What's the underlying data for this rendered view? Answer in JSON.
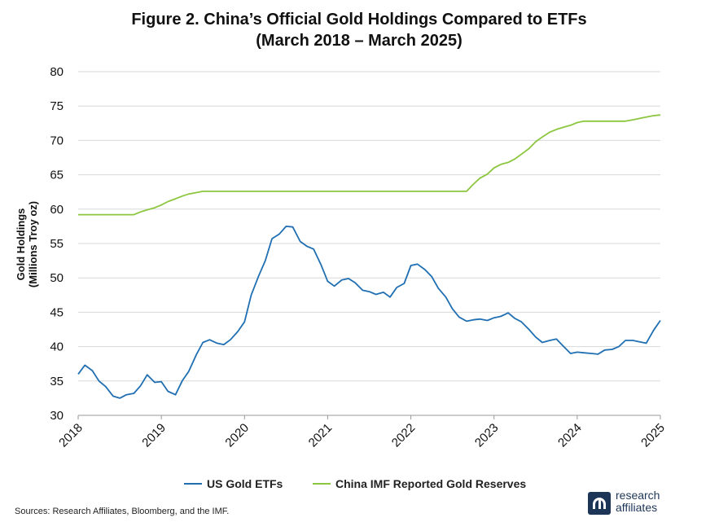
{
  "title_line1": "Figure 2. China’s Official Gold Holdings Compared to ETFs",
  "title_line2": "(March 2018 – March 2025)",
  "source": "Sources: Research Affiliates, Bloomberg, and the IMF.",
  "logo": {
    "line1": "research",
    "line2": "affiliates"
  },
  "colors": {
    "us_etf": "#1f6fb2",
    "china": "#8cc63f",
    "grid": "#d8d8d8"
  },
  "chart_data": {
    "type": "line",
    "ylabel_line1": "Gold Holdings",
    "ylabel_line2": "(Millions Troy oz)",
    "ylim": [
      30,
      80
    ],
    "yticks": [
      30,
      35,
      40,
      45,
      50,
      55,
      60,
      65,
      70,
      75,
      80
    ],
    "xlim": [
      2018.0,
      2025.0
    ],
    "xticks": [
      2018,
      2019,
      2020,
      2021,
      2022,
      2023,
      2024,
      2025
    ],
    "grid": true,
    "legend_position": "bottom",
    "series": [
      {
        "name": "US Gold ETFs",
        "color": "#1f6fb2",
        "points": [
          [
            2018.0,
            36.0
          ],
          [
            2018.08,
            37.3
          ],
          [
            2018.17,
            36.5
          ],
          [
            2018.25,
            35.0
          ],
          [
            2018.33,
            34.2
          ],
          [
            2018.42,
            32.8
          ],
          [
            2018.5,
            32.5
          ],
          [
            2018.58,
            33.0
          ],
          [
            2018.67,
            33.2
          ],
          [
            2018.75,
            34.3
          ],
          [
            2018.83,
            35.9
          ],
          [
            2018.92,
            34.8
          ],
          [
            2019.0,
            34.9
          ],
          [
            2019.08,
            33.5
          ],
          [
            2019.17,
            33.0
          ],
          [
            2019.25,
            35.0
          ],
          [
            2019.33,
            36.4
          ],
          [
            2019.42,
            38.8
          ],
          [
            2019.5,
            40.6
          ],
          [
            2019.58,
            41.0
          ],
          [
            2019.67,
            40.5
          ],
          [
            2019.75,
            40.3
          ],
          [
            2019.83,
            41.0
          ],
          [
            2019.92,
            42.2
          ],
          [
            2020.0,
            43.6
          ],
          [
            2020.08,
            47.5
          ],
          [
            2020.17,
            50.3
          ],
          [
            2020.25,
            52.5
          ],
          [
            2020.33,
            55.7
          ],
          [
            2020.42,
            56.4
          ],
          [
            2020.5,
            57.5
          ],
          [
            2020.58,
            57.4
          ],
          [
            2020.67,
            55.3
          ],
          [
            2020.75,
            54.6
          ],
          [
            2020.83,
            54.2
          ],
          [
            2020.92,
            51.9
          ],
          [
            2021.0,
            49.5
          ],
          [
            2021.08,
            48.8
          ],
          [
            2021.17,
            49.7
          ],
          [
            2021.25,
            49.9
          ],
          [
            2021.33,
            49.3
          ],
          [
            2021.42,
            48.2
          ],
          [
            2021.5,
            48.0
          ],
          [
            2021.58,
            47.6
          ],
          [
            2021.67,
            47.9
          ],
          [
            2021.75,
            47.2
          ],
          [
            2021.83,
            48.6
          ],
          [
            2021.92,
            49.2
          ],
          [
            2022.0,
            51.8
          ],
          [
            2022.08,
            52.0
          ],
          [
            2022.17,
            51.2
          ],
          [
            2022.25,
            50.2
          ],
          [
            2022.33,
            48.5
          ],
          [
            2022.42,
            47.2
          ],
          [
            2022.5,
            45.5
          ],
          [
            2022.58,
            44.3
          ],
          [
            2022.67,
            43.7
          ],
          [
            2022.75,
            43.9
          ],
          [
            2022.83,
            44.0
          ],
          [
            2022.92,
            43.8
          ],
          [
            2023.0,
            44.2
          ],
          [
            2023.08,
            44.4
          ],
          [
            2023.17,
            44.9
          ],
          [
            2023.25,
            44.1
          ],
          [
            2023.33,
            43.6
          ],
          [
            2023.42,
            42.5
          ],
          [
            2023.5,
            41.4
          ],
          [
            2023.58,
            40.6
          ],
          [
            2023.67,
            40.9
          ],
          [
            2023.75,
            41.1
          ],
          [
            2023.83,
            40.1
          ],
          [
            2023.92,
            39.0
          ],
          [
            2024.0,
            39.2
          ],
          [
            2024.08,
            39.1
          ],
          [
            2024.17,
            39.0
          ],
          [
            2024.25,
            38.9
          ],
          [
            2024.33,
            39.5
          ],
          [
            2024.42,
            39.6
          ],
          [
            2024.5,
            40.0
          ],
          [
            2024.58,
            40.9
          ],
          [
            2024.67,
            40.9
          ],
          [
            2024.75,
            40.7
          ],
          [
            2024.83,
            40.5
          ],
          [
            2024.92,
            42.4
          ],
          [
            2025.0,
            43.8
          ]
        ]
      },
      {
        "name": "China IMF Reported Gold Reserves",
        "color": "#8cc63f",
        "points": [
          [
            2018.0,
            59.2
          ],
          [
            2018.67,
            59.2
          ],
          [
            2018.75,
            59.6
          ],
          [
            2018.83,
            59.9
          ],
          [
            2018.92,
            60.2
          ],
          [
            2019.0,
            60.6
          ],
          [
            2019.08,
            61.1
          ],
          [
            2019.17,
            61.5
          ],
          [
            2019.25,
            61.9
          ],
          [
            2019.33,
            62.2
          ],
          [
            2019.42,
            62.4
          ],
          [
            2019.5,
            62.6
          ],
          [
            2022.67,
            62.6
          ],
          [
            2022.75,
            63.6
          ],
          [
            2022.83,
            64.5
          ],
          [
            2022.92,
            65.1
          ],
          [
            2023.0,
            66.0
          ],
          [
            2023.08,
            66.5
          ],
          [
            2023.17,
            66.8
          ],
          [
            2023.25,
            67.3
          ],
          [
            2023.33,
            68.0
          ],
          [
            2023.42,
            68.8
          ],
          [
            2023.5,
            69.8
          ],
          [
            2023.58,
            70.5
          ],
          [
            2023.67,
            71.2
          ],
          [
            2023.75,
            71.6
          ],
          [
            2023.83,
            71.9
          ],
          [
            2023.92,
            72.2
          ],
          [
            2024.0,
            72.6
          ],
          [
            2024.08,
            72.8
          ],
          [
            2024.58,
            72.8
          ],
          [
            2024.67,
            73.0
          ],
          [
            2024.75,
            73.2
          ],
          [
            2024.83,
            73.4
          ],
          [
            2024.92,
            73.6
          ],
          [
            2025.0,
            73.7
          ]
        ]
      }
    ]
  }
}
